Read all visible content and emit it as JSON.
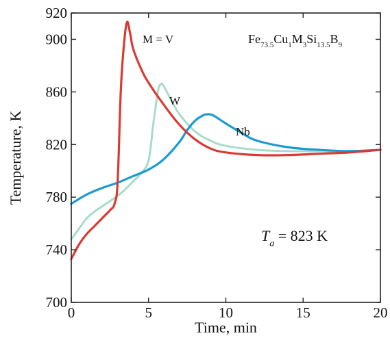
{
  "chart_data": {
    "type": "line",
    "title": "",
    "xlabel": "Time, min",
    "ylabel": "Temperature, K",
    "xlim": [
      0,
      20
    ],
    "ylim": [
      700,
      920
    ],
    "xticks": [
      0,
      5,
      10,
      15,
      20
    ],
    "yticks": [
      700,
      740,
      780,
      820,
      860,
      900,
      920
    ],
    "grid": false,
    "legend": "none",
    "formula": {
      "base": [
        "Fe",
        "Cu",
        "M",
        "Si",
        "B"
      ],
      "subs": [
        "73.5",
        "1",
        "3",
        "13.5",
        "9"
      ]
    },
    "annotation": {
      "symbol": "T",
      "subscript": "a",
      "text": " = 823 K"
    },
    "series": [
      {
        "name": "M = V",
        "color": "#d93a34",
        "x": [
          0,
          0.5,
          1,
          1.5,
          2,
          2.5,
          2.8,
          3.0,
          3.2,
          3.4,
          3.6,
          3.8,
          4,
          4.5,
          5,
          6,
          7,
          8,
          9,
          10,
          12,
          14,
          16,
          18,
          20
        ],
        "y": [
          733,
          744,
          752,
          758,
          764,
          770,
          775,
          792,
          860,
          895,
          913,
          905,
          893,
          878,
          867,
          850,
          835,
          824,
          817,
          814,
          812,
          812,
          813,
          814,
          816
        ]
      },
      {
        "name": "W",
        "color": "#a8dcc8",
        "x": [
          0,
          0.5,
          1,
          1.5,
          2,
          2.5,
          3,
          3.5,
          4,
          4.5,
          5,
          5.3,
          5.6,
          5.8,
          6,
          6.5,
          7,
          8,
          9,
          10,
          12,
          14,
          16,
          18,
          20
        ],
        "y": [
          748,
          756,
          764,
          769,
          773,
          777,
          781,
          786,
          792,
          798,
          808,
          835,
          860,
          866,
          864,
          853,
          843,
          830,
          823,
          819,
          816,
          815,
          815,
          815,
          816
        ]
      },
      {
        "name": "Nb",
        "color": "#1a9ad0",
        "x": [
          0,
          1,
          2,
          3,
          4,
          5,
          6,
          7,
          7.5,
          8,
          8.5,
          8.8,
          9.2,
          10,
          11,
          12,
          14,
          16,
          18,
          20
        ],
        "y": [
          775,
          782,
          787,
          791,
          796,
          801,
          809,
          822,
          831,
          838,
          842,
          843,
          842,
          836,
          829,
          823,
          818,
          816,
          815,
          816
        ]
      }
    ]
  }
}
